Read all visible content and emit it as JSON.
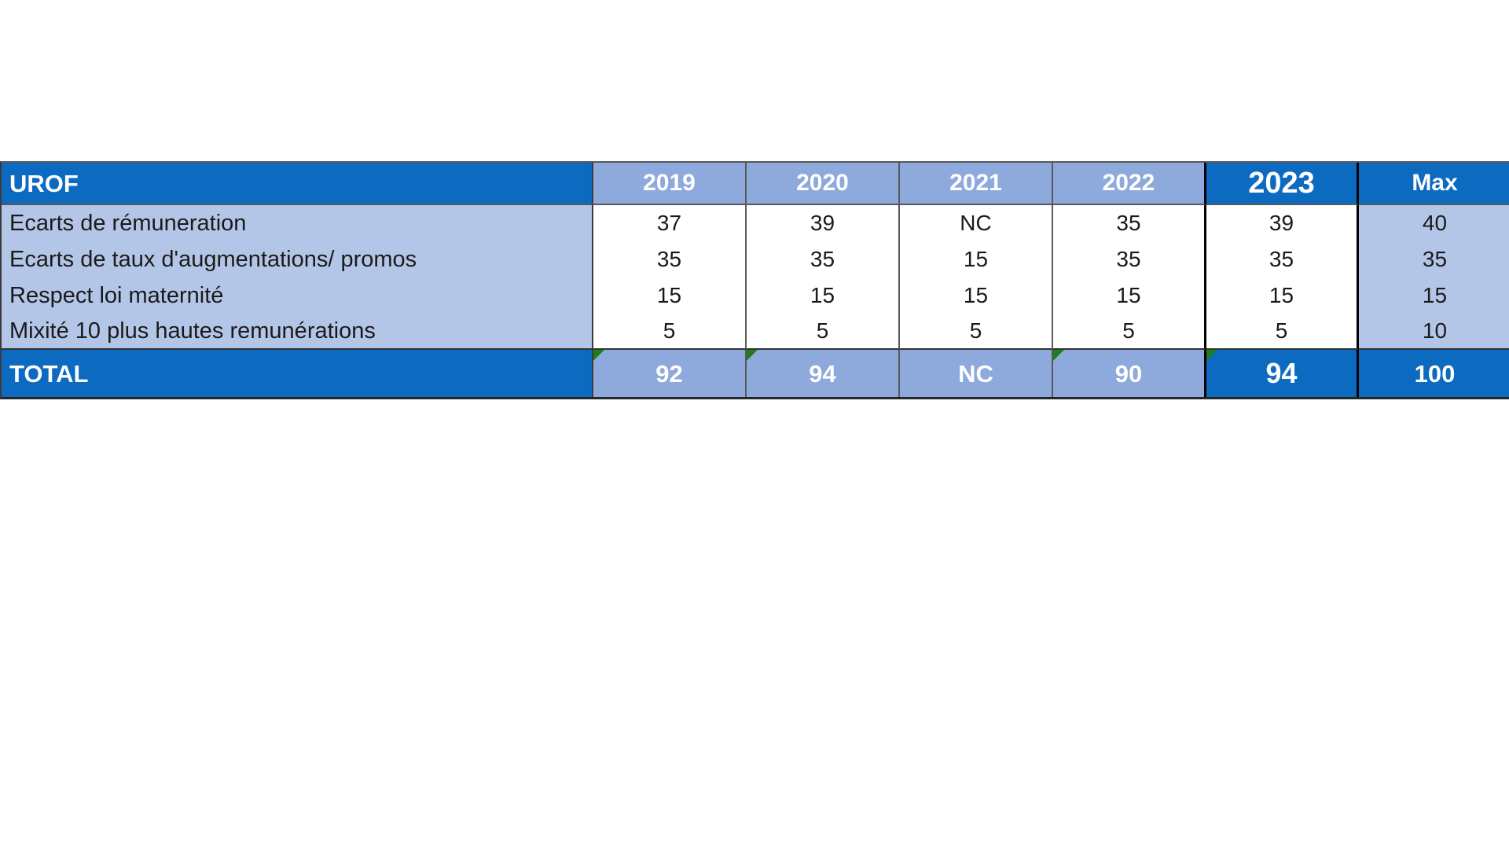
{
  "table": {
    "header": {
      "title": "UROF",
      "columns": [
        "2019",
        "2020",
        "2021",
        "2022",
        "2023",
        "Max"
      ]
    },
    "rows": [
      {
        "label": "Ecarts de rémuneration",
        "values": [
          "37",
          "39",
          "NC",
          "35",
          "39",
          "40"
        ]
      },
      {
        "label": "Ecarts de taux d'augmentations/ promos",
        "values": [
          "35",
          "35",
          "15",
          "35",
          "35",
          "35"
        ]
      },
      {
        "label": "Respect loi maternité",
        "values": [
          "15",
          "15",
          "15",
          "15",
          "15",
          "15"
        ]
      },
      {
        "label": "Mixité 10 plus hautes remunérations",
        "values": [
          "5",
          "5",
          "5",
          "5",
          "5",
          "10"
        ]
      }
    ],
    "total": {
      "label": "TOTAL",
      "values": [
        "92",
        "94",
        "NC",
        "90",
        "94",
        "100"
      ],
      "error_flags": [
        true,
        true,
        false,
        true,
        true,
        false
      ]
    },
    "colors": {
      "dark_blue": "#0c6ac0",
      "mid_blue": "#8ea9db",
      "pale_blue": "#b4c6e7",
      "flag_green": "#1e7d1e",
      "header_text": "#ffffff",
      "data_text": "#1a1a1a"
    }
  }
}
